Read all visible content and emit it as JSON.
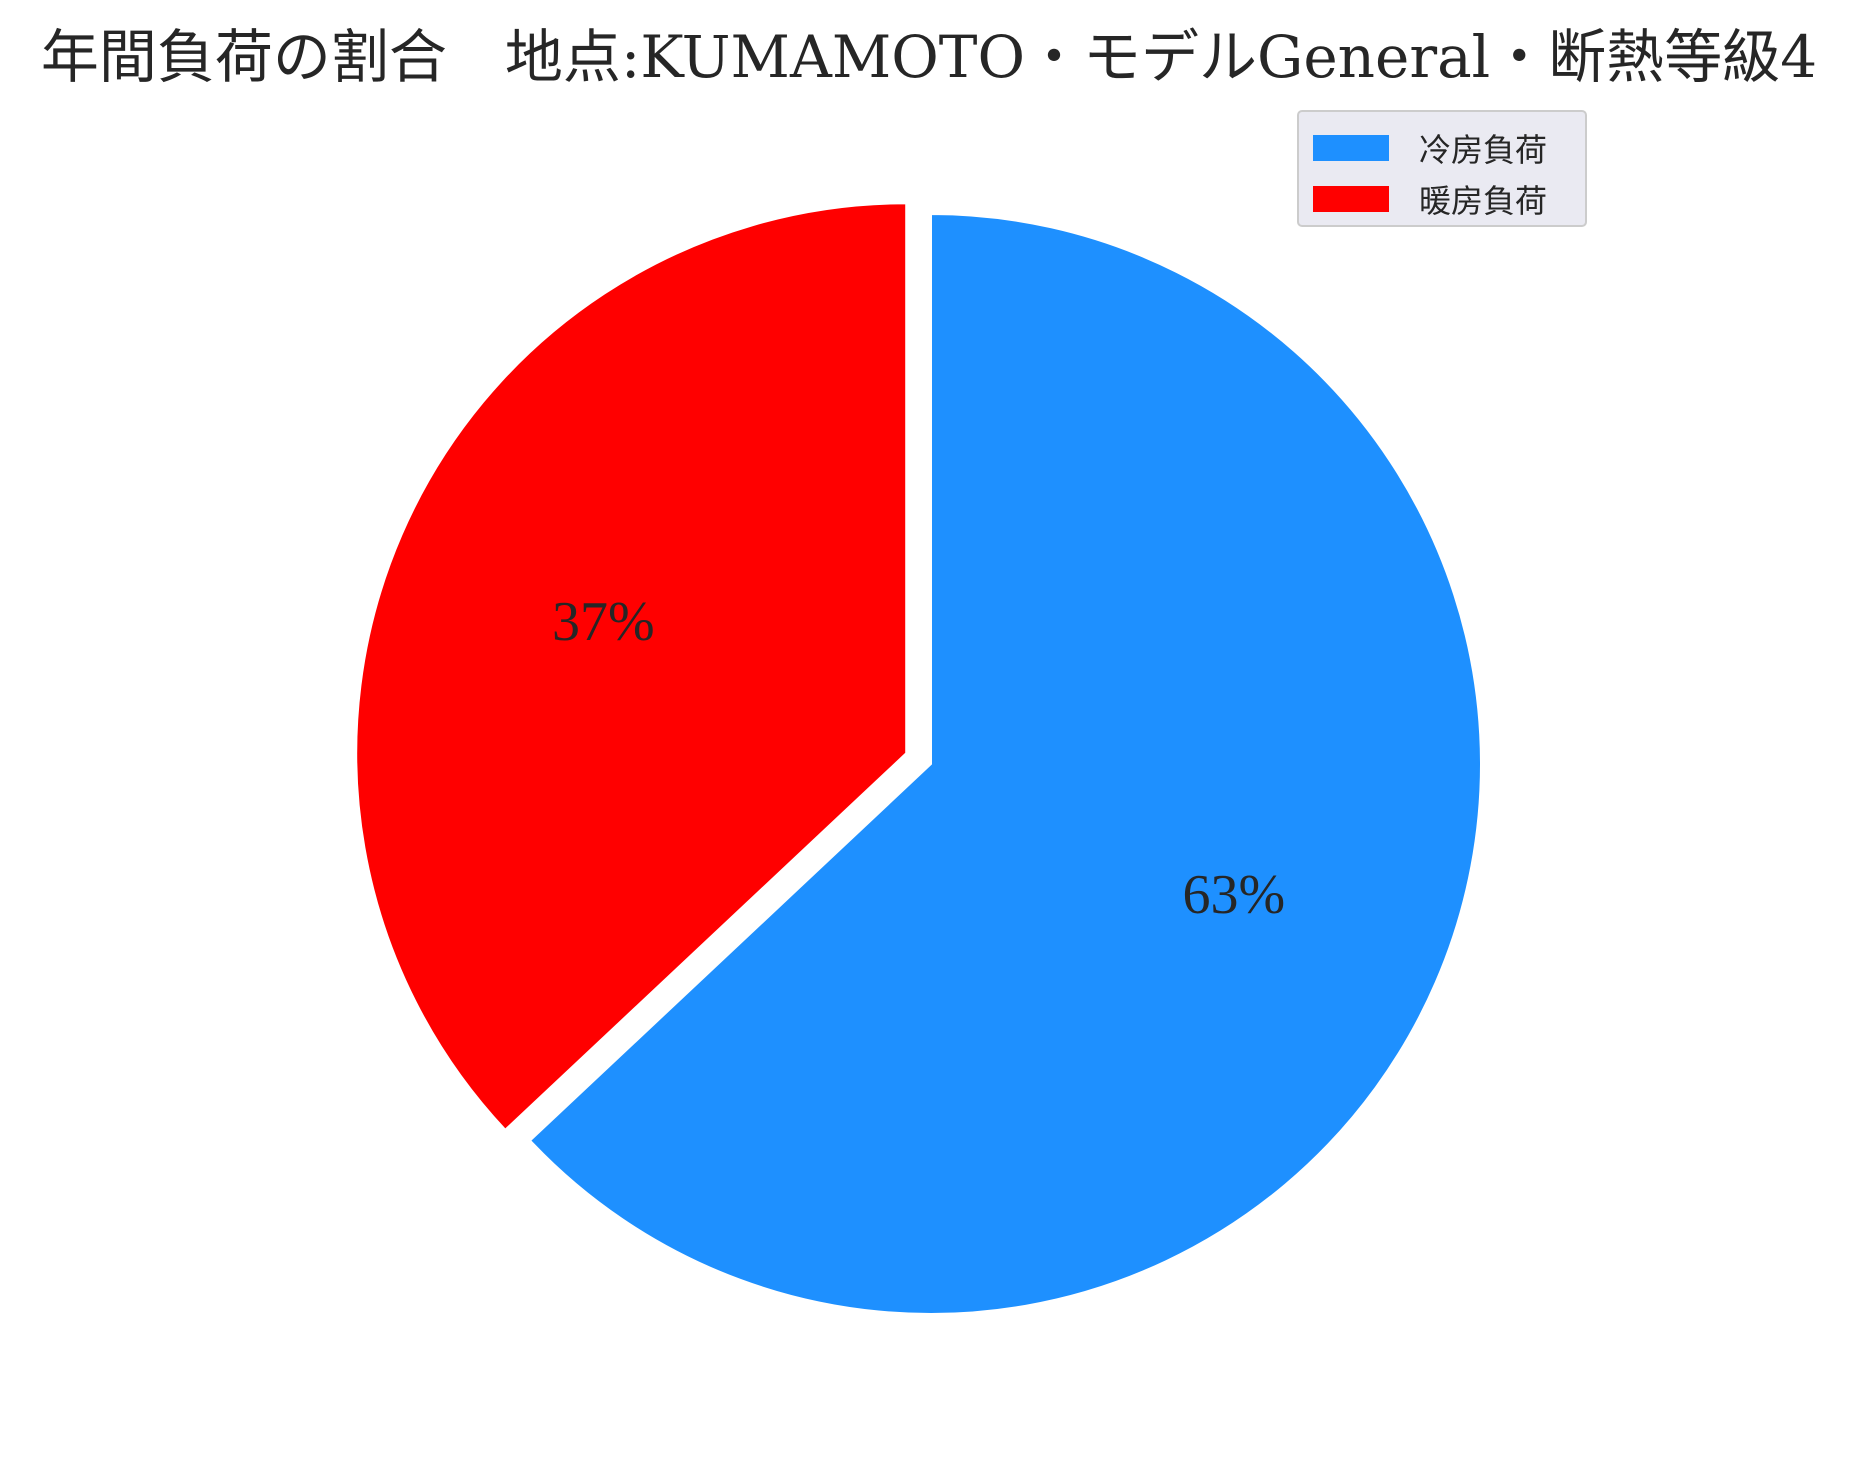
{
  "chart_data": {
    "type": "pie",
    "title": "年間負荷の割合　地点:KUMAMOTO・モデルGeneral・断熱等級4",
    "slices": [
      {
        "name": "冷房負荷",
        "value": 63,
        "label": "63%",
        "color": "#1e90ff",
        "exploded": false
      },
      {
        "name": "暖房負荷",
        "value": 37,
        "label": "37%",
        "color": "#ff0000",
        "exploded": true
      }
    ],
    "start_angle_deg": 90,
    "direction": "clockwise",
    "legend": {
      "placement": "top-right",
      "entries": [
        {
          "label": "冷房負荷",
          "color": "#1e90ff"
        },
        {
          "label": "暖房負荷",
          "color": "#ff0000"
        }
      ]
    }
  }
}
